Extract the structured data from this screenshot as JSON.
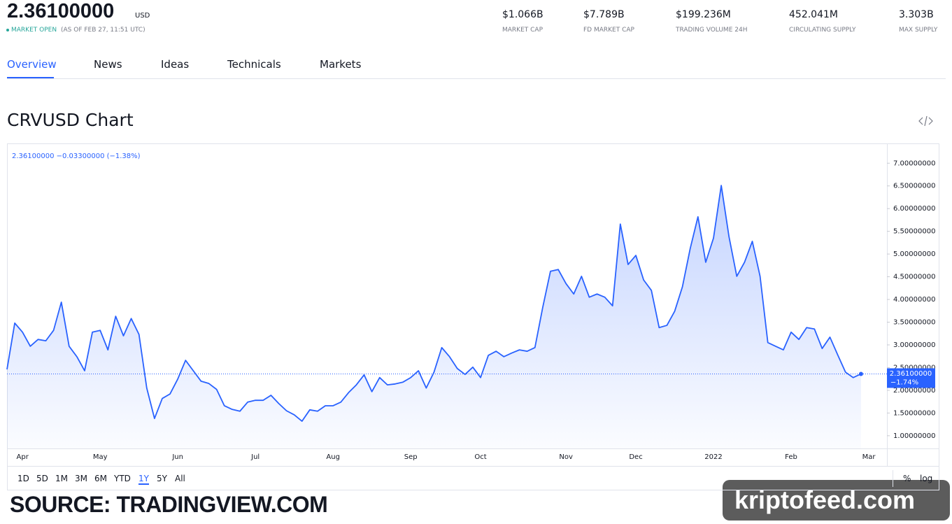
{
  "header": {
    "price": "2.36100000",
    "currency": "USD",
    "status": "MARKET OPEN",
    "as_of": "(AS OF FEB 27, 11:51 UTC)",
    "stats": [
      {
        "value": "$1.066B",
        "label": "MARKET CAP"
      },
      {
        "value": "$7.789B",
        "label": "FD MARKET CAP"
      },
      {
        "value": "$199.236M",
        "label": "TRADING VOLUME 24H"
      },
      {
        "value": "452.041M",
        "label": "CIRCULATING SUPPLY"
      },
      {
        "value": "3.303B",
        "label": "MAX SUPPLY"
      }
    ]
  },
  "tabs": [
    "Overview",
    "News",
    "Ideas",
    "Technicals",
    "Markets"
  ],
  "chart_data": {
    "type": "line",
    "title": "CRVUSD Chart",
    "legend_text": "2.36100000 −0.03300000 (−1.38%)",
    "price_label": "2.36100000",
    "change_label": "−1.74%",
    "color": "#2962ff",
    "grid": false,
    "categories": [
      null,
      null,
      "Apr",
      null,
      null,
      null,
      null,
      null,
      null,
      null,
      null,
      null,
      "May",
      null,
      null,
      null,
      null,
      null,
      null,
      null,
      null,
      null,
      "Jun",
      null,
      null,
      null,
      null,
      null,
      null,
      null,
      null,
      null,
      "Jul",
      null,
      null,
      null,
      null,
      null,
      null,
      null,
      null,
      null,
      "Aug",
      null,
      null,
      null,
      null,
      null,
      null,
      null,
      null,
      null,
      "Sep",
      null,
      null,
      null,
      null,
      null,
      null,
      null,
      null,
      "Oct",
      null,
      null,
      null,
      null,
      null,
      null,
      null,
      null,
      null,
      null,
      "Nov",
      null,
      null,
      null,
      null,
      null,
      null,
      null,
      null,
      "Dec",
      null,
      null,
      null,
      null,
      null,
      null,
      null,
      null,
      null,
      "2022",
      null,
      null,
      null,
      null,
      null,
      null,
      null,
      null,
      null,
      "Feb",
      null,
      null,
      null,
      null,
      null,
      null,
      null,
      null,
      null,
      "Mar"
    ],
    "values": [
      2.46,
      3.48,
      3.28,
      2.97,
      3.12,
      3.09,
      3.32,
      3.94,
      2.97,
      2.74,
      2.43,
      3.28,
      3.32,
      2.89,
      3.63,
      3.2,
      3.58,
      3.23,
      2.05,
      1.38,
      1.82,
      1.92,
      2.25,
      2.66,
      2.43,
      2.2,
      2.15,
      2.02,
      1.66,
      1.58,
      1.54,
      1.74,
      1.78,
      1.78,
      1.89,
      1.71,
      1.55,
      1.46,
      1.32,
      1.57,
      1.54,
      1.66,
      1.66,
      1.74,
      1.95,
      2.12,
      2.34,
      1.97,
      2.28,
      2.12,
      2.14,
      2.18,
      2.28,
      2.43,
      2.05,
      2.4,
      2.94,
      2.74,
      2.48,
      2.35,
      2.51,
      2.28,
      2.77,
      2.86,
      2.74,
      2.82,
      2.89,
      2.86,
      2.94,
      3.82,
      4.62,
      4.66,
      4.35,
      4.12,
      4.51,
      4.05,
      4.12,
      4.05,
      3.86,
      5.66,
      4.77,
      4.97,
      4.43,
      4.2,
      3.38,
      3.43,
      3.74,
      4.28,
      5.12,
      5.82,
      4.82,
      5.35,
      6.51,
      5.38,
      4.51,
      4.82,
      5.28,
      4.51,
      3.05,
      2.97,
      2.89,
      3.28,
      3.12,
      3.38,
      3.35,
      2.92,
      3.17,
      2.78,
      2.4,
      2.28,
      2.361,
      null
    ],
    "ylim": [
      0.72,
      7.42
    ],
    "yticks": [
      {
        "value": 1,
        "label": "1.00000000"
      },
      {
        "value": 1.5,
        "label": "1.50000000"
      },
      {
        "value": 2,
        "label": "2.00000000"
      },
      {
        "value": 2.5,
        "label": "2.50000000"
      },
      {
        "value": 3,
        "label": "3.00000000"
      },
      {
        "value": 3.5,
        "label": "3.50000000"
      },
      {
        "value": 4,
        "label": "4.00000000"
      },
      {
        "value": 4.5,
        "label": "4.50000000"
      },
      {
        "value": 5,
        "label": "5.00000000"
      },
      {
        "value": 5.5,
        "label": "5.50000000"
      },
      {
        "value": 6,
        "label": "6.00000000"
      },
      {
        "value": 6.5,
        "label": "6.50000000"
      },
      {
        "value": 7,
        "label": "7.00000000"
      }
    ]
  },
  "ranges": [
    "1D",
    "5D",
    "1M",
    "3M",
    "6M",
    "YTD",
    "1Y",
    "5Y",
    "All"
  ],
  "toggles": [
    "%",
    "log"
  ],
  "source": "SOURCE: TRADINGVIEW.COM",
  "watermark": "kriptofeed.com"
}
